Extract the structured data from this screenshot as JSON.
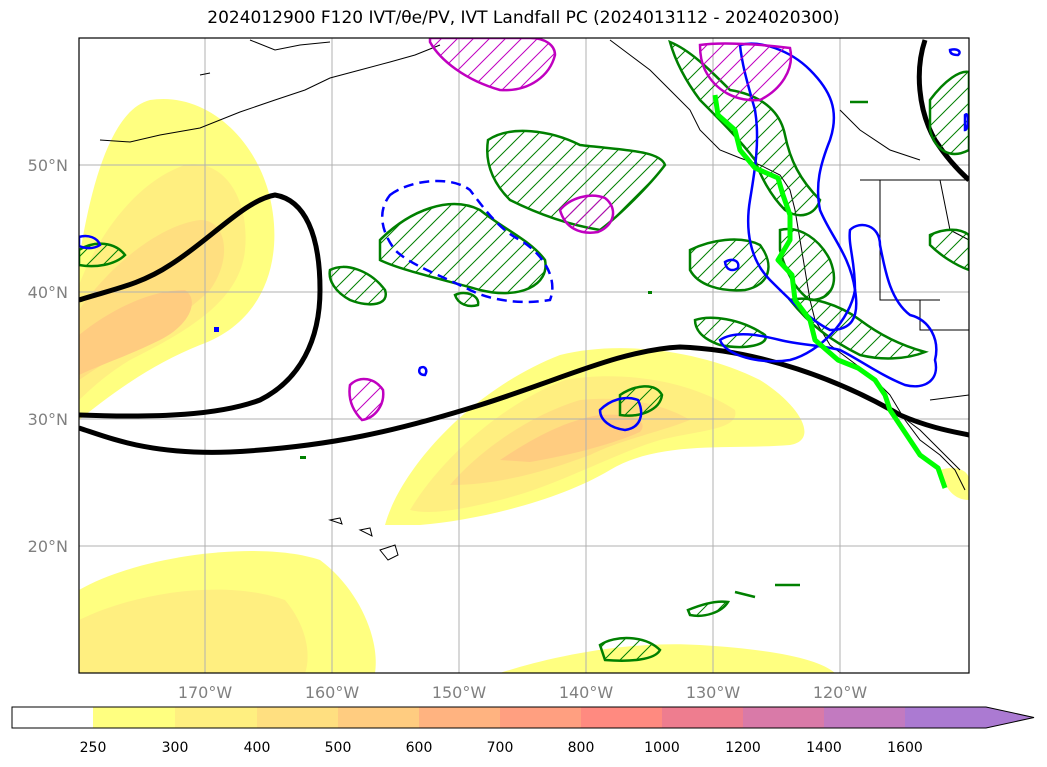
{
  "title": "2024012900 F120 IVT/θe/PV, IVT Landfall PC (2024013112 - 2024020300)",
  "lat_labels": [
    "50°N",
    "40°N",
    "30°N",
    "20°N"
  ],
  "lon_labels": [
    "170°W",
    "160°W",
    "150°W",
    "140°W",
    "130°W",
    "120°W"
  ],
  "colorbar": {
    "ticks": [
      "250",
      "300",
      "400",
      "500",
      "600",
      "700",
      "800",
      "1000",
      "1200",
      "1400",
      "1600"
    ],
    "colors": [
      "#ffff80",
      "#ffef80",
      "#ffdf80",
      "#ffcc80",
      "#ffb380",
      "#ff9f80",
      "#ff8a80",
      "#ee7d8f",
      "#d97aa8",
      "#c27ac0",
      "#ab7ad2"
    ],
    "extend": "max"
  },
  "map": {
    "projection": "PlateCarree",
    "lon_range": [
      -180,
      -110
    ],
    "lat_range": [
      10,
      60
    ],
    "gridlines": true,
    "ivt_fill_colors": [
      "#ffff80",
      "#ffef80",
      "#ffdf80",
      "#ffcc80"
    ],
    "contour_colors": {
      "theta_e": "#000000",
      "pc_positive": "#008000",
      "pc_negative": "#0000ff",
      "pv": "#c000c0",
      "landfall": "#00ff00",
      "coastline": "#000000"
    }
  }
}
